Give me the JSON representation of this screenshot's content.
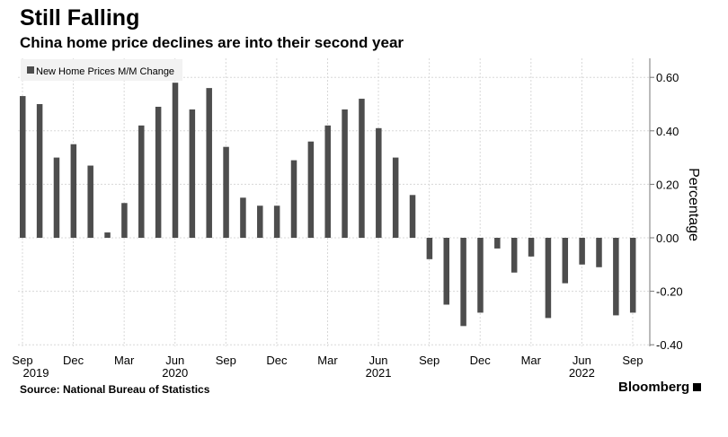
{
  "title": "Still Falling",
  "subtitle": "China home price declines are into their second year",
  "source": "Source: National Bureau of Statistics",
  "brand": "Bloomberg",
  "chart_data": {
    "type": "bar",
    "legend": {
      "label": "New Home Prices M/M Change",
      "placement": "top-left"
    },
    "ylabel": "Percentage",
    "ylim": [
      -0.4,
      0.6
    ],
    "yticks": [
      "0.60",
      "0.40",
      "0.20",
      "0.00",
      "-0.20",
      "-0.40"
    ],
    "ytick_values": [
      0.6,
      0.4,
      0.2,
      0,
      -0.2,
      -0.4
    ],
    "y_axis_side": "right",
    "grid": true,
    "bar_color": "#4d4d4d",
    "categories": [
      "2019-09",
      "2019-10",
      "2019-11",
      "2019-12",
      "2020-01",
      "2020-02",
      "2020-03",
      "2020-04",
      "2020-05",
      "2020-06",
      "2020-07",
      "2020-08",
      "2020-09",
      "2020-10",
      "2020-11",
      "2020-12",
      "2021-01",
      "2021-02",
      "2021-03",
      "2021-04",
      "2021-05",
      "2021-06",
      "2021-07",
      "2021-08",
      "2021-09",
      "2021-10",
      "2021-11",
      "2021-12",
      "2022-01",
      "2022-02",
      "2022-03",
      "2022-04",
      "2022-05",
      "2022-06",
      "2022-07",
      "2022-08",
      "2022-09"
    ],
    "values": [
      0.53,
      0.5,
      0.3,
      0.35,
      0.27,
      0.02,
      0.13,
      0.42,
      0.49,
      0.58,
      0.48,
      0.56,
      0.34,
      0.15,
      0.12,
      0.12,
      0.29,
      0.36,
      0.42,
      0.48,
      0.52,
      0.41,
      0.3,
      0.16,
      -0.08,
      -0.25,
      -0.33,
      -0.28,
      -0.04,
      -0.13,
      -0.07,
      -0.3,
      -0.17,
      -0.1,
      -0.11,
      -0.29,
      -0.28
    ],
    "xticks": [
      {
        "index": 0,
        "label": "Sep"
      },
      {
        "index": 3,
        "label": "Dec"
      },
      {
        "index": 6,
        "label": "Mar"
      },
      {
        "index": 9,
        "label": "Jun"
      },
      {
        "index": 12,
        "label": "Sep"
      },
      {
        "index": 15,
        "label": "Dec"
      },
      {
        "index": 18,
        "label": "Mar"
      },
      {
        "index": 21,
        "label": "Jun"
      },
      {
        "index": 24,
        "label": "Sep"
      },
      {
        "index": 27,
        "label": "Dec"
      },
      {
        "index": 30,
        "label": "Mar"
      },
      {
        "index": 33,
        "label": "Jun"
      },
      {
        "index": 36,
        "label": "Sep"
      }
    ],
    "year_labels": [
      {
        "index": 0,
        "label": "2019"
      },
      {
        "index": 9,
        "label": "2020"
      },
      {
        "index": 21,
        "label": "2021"
      },
      {
        "index": 33,
        "label": "2022"
      }
    ]
  }
}
